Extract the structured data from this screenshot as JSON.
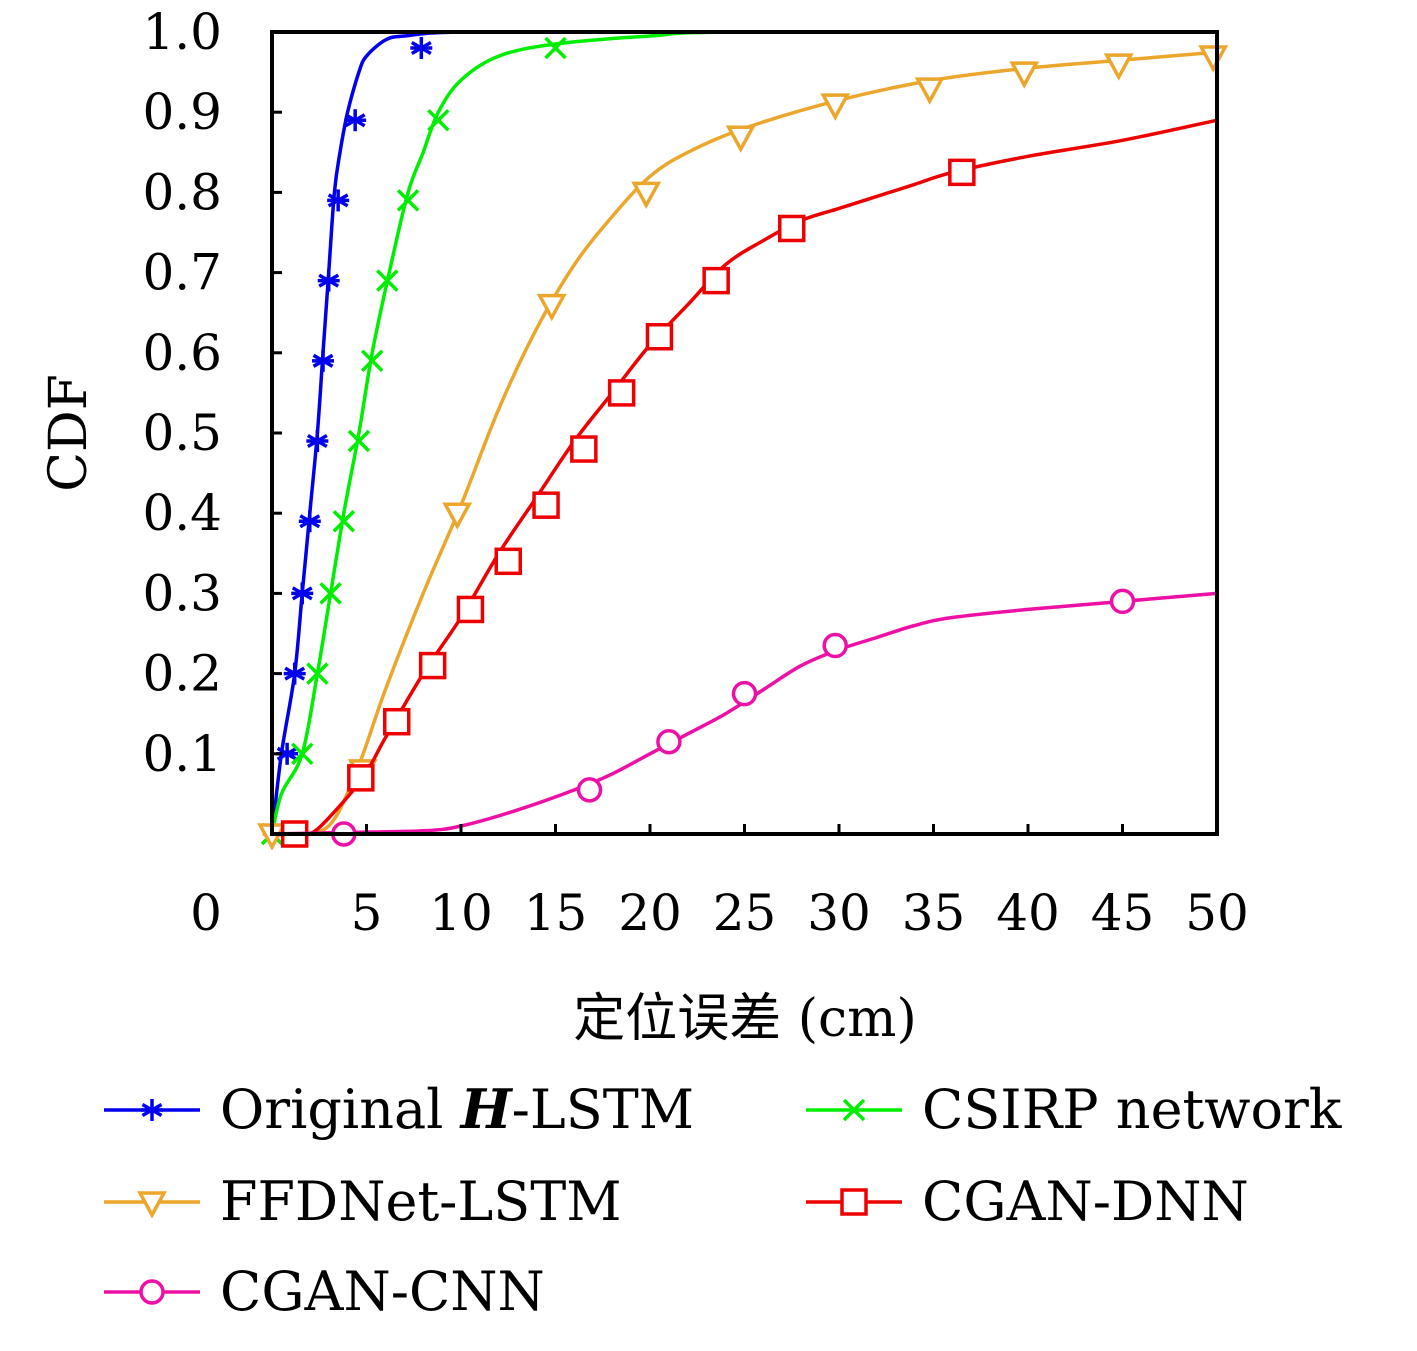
{
  "chart_data": {
    "type": "line",
    "xlabel": "定位误差 (cm)",
    "ylabel": "CDF",
    "xlim": [
      0,
      50
    ],
    "ylim": [
      0,
      1.0
    ],
    "x_ticks": [
      "0",
      "5",
      "10",
      "15",
      "20",
      "25",
      "30",
      "35",
      "40",
      "45",
      "50"
    ],
    "y_ticks": [
      "0.1",
      "0.2",
      "0.3",
      "0.4",
      "0.5",
      "0.6",
      "0.7",
      "0.8",
      "0.9",
      "1.0"
    ],
    "grid": false,
    "legend_position": "bottom",
    "series": [
      {
        "name": "Original H-LSTM",
        "name_parts": [
          "Original ",
          "H",
          "-LSTM"
        ],
        "color": "#0000ee",
        "marker": "asterisk",
        "points": [
          [
            0,
            0
          ],
          [
            0.5,
            0.1
          ],
          [
            1.2,
            0.2
          ],
          [
            1.6,
            0.3
          ],
          [
            2.0,
            0.4
          ],
          [
            2.4,
            0.5
          ],
          [
            2.7,
            0.6
          ],
          [
            3.0,
            0.7
          ],
          [
            3.3,
            0.8
          ],
          [
            3.6,
            0.85
          ],
          [
            4.0,
            0.9
          ],
          [
            4.6,
            0.95
          ],
          [
            5.0,
            0.97
          ],
          [
            6.0,
            0.99
          ],
          [
            7.0,
            0.995
          ],
          [
            10,
            1.0
          ],
          [
            20,
            1.0
          ],
          [
            50,
            1.0
          ]
        ],
        "markers": [
          [
            0.8,
            0.1
          ],
          [
            1.2,
            0.2
          ],
          [
            1.6,
            0.3
          ],
          [
            2.0,
            0.39
          ],
          [
            2.4,
            0.49
          ],
          [
            2.7,
            0.59
          ],
          [
            3.0,
            0.69
          ],
          [
            3.5,
            0.79
          ],
          [
            4.4,
            0.89
          ],
          [
            7.9,
            0.98
          ]
        ]
      },
      {
        "name": "CSIRP network",
        "color": "#00ee00",
        "marker": "x",
        "points": [
          [
            0,
            0
          ],
          [
            0.5,
            0.05
          ],
          [
            1.6,
            0.1
          ],
          [
            2.4,
            0.2
          ],
          [
            3.1,
            0.3
          ],
          [
            3.8,
            0.4
          ],
          [
            4.6,
            0.5
          ],
          [
            5.3,
            0.6
          ],
          [
            6.2,
            0.7
          ],
          [
            7.2,
            0.8
          ],
          [
            8.0,
            0.85
          ],
          [
            8.8,
            0.9
          ],
          [
            10,
            0.94
          ],
          [
            12,
            0.97
          ],
          [
            15,
            0.985
          ],
          [
            20,
            0.995
          ],
          [
            25,
            1.0
          ],
          [
            50,
            1.0
          ]
        ],
        "markers": [
          [
            0,
            0
          ],
          [
            1.6,
            0.1
          ],
          [
            2.4,
            0.2
          ],
          [
            3.1,
            0.3
          ],
          [
            3.8,
            0.39
          ],
          [
            4.6,
            0.49
          ],
          [
            5.3,
            0.59
          ],
          [
            6.1,
            0.69
          ],
          [
            7.2,
            0.79
          ],
          [
            8.8,
            0.89
          ],
          [
            15,
            0.98
          ]
        ]
      },
      {
        "name": "FFDNet-LSTM",
        "color": "#eba62b",
        "marker": "triangle-down",
        "points": [
          [
            -0.5,
            0
          ],
          [
            1,
            0
          ],
          [
            3,
            0.01
          ],
          [
            4.5,
            0.08
          ],
          [
            6,
            0.18
          ],
          [
            8,
            0.3
          ],
          [
            10,
            0.41
          ],
          [
            12,
            0.53
          ],
          [
            14,
            0.63
          ],
          [
            16,
            0.71
          ],
          [
            18,
            0.77
          ],
          [
            20,
            0.82
          ],
          [
            22,
            0.85
          ],
          [
            25,
            0.88
          ],
          [
            30,
            0.915
          ],
          [
            35,
            0.94
          ],
          [
            40,
            0.955
          ],
          [
            45,
            0.965
          ],
          [
            50,
            0.975
          ]
        ],
        "markers": [
          [
            0,
            0
          ],
          [
            4.8,
            0.08
          ],
          [
            9.8,
            0.4
          ],
          [
            14.8,
            0.66
          ],
          [
            19.8,
            0.8
          ],
          [
            24.8,
            0.87
          ],
          [
            29.8,
            0.91
          ],
          [
            34.8,
            0.93
          ],
          [
            39.8,
            0.95
          ],
          [
            44.8,
            0.96
          ],
          [
            49.8,
            0.97
          ]
        ]
      },
      {
        "name": "CGAN-DNN",
        "color": "#ee0000",
        "marker": "square",
        "points": [
          [
            1,
            0
          ],
          [
            2,
            0
          ],
          [
            3,
            0.02
          ],
          [
            4.8,
            0.07
          ],
          [
            6,
            0.12
          ],
          [
            8,
            0.2
          ],
          [
            10,
            0.27
          ],
          [
            12,
            0.35
          ],
          [
            14,
            0.42
          ],
          [
            16,
            0.49
          ],
          [
            18,
            0.55
          ],
          [
            20,
            0.61
          ],
          [
            22,
            0.66
          ],
          [
            24,
            0.71
          ],
          [
            26,
            0.74
          ],
          [
            28,
            0.765
          ],
          [
            30,
            0.78
          ],
          [
            32,
            0.795
          ],
          [
            34,
            0.81
          ],
          [
            36,
            0.825
          ],
          [
            40,
            0.845
          ],
          [
            45,
            0.865
          ],
          [
            50,
            0.89
          ]
        ],
        "markers": [
          [
            1.2,
            0
          ],
          [
            4.7,
            0.07
          ],
          [
            6.6,
            0.14
          ],
          [
            8.5,
            0.21
          ],
          [
            10.5,
            0.28
          ],
          [
            12.5,
            0.34
          ],
          [
            14.5,
            0.41
          ],
          [
            16.5,
            0.48
          ],
          [
            18.5,
            0.55
          ],
          [
            20.5,
            0.62
          ],
          [
            23.5,
            0.69
          ],
          [
            27.5,
            0.755
          ],
          [
            36.5,
            0.825
          ]
        ]
      },
      {
        "name": "CGAN-CNN",
        "color": "#ee10a6",
        "marker": "circle",
        "points": [
          [
            0,
            0
          ],
          [
            4,
            0.002
          ],
          [
            8,
            0.004
          ],
          [
            10,
            0.01
          ],
          [
            13,
            0.03
          ],
          [
            16,
            0.055
          ],
          [
            18,
            0.075
          ],
          [
            20,
            0.1
          ],
          [
            22,
            0.125
          ],
          [
            24,
            0.15
          ],
          [
            26,
            0.18
          ],
          [
            28,
            0.21
          ],
          [
            30,
            0.23
          ],
          [
            32,
            0.245
          ],
          [
            34,
            0.26
          ],
          [
            36,
            0.27
          ],
          [
            40,
            0.28
          ],
          [
            45,
            0.29
          ],
          [
            50,
            0.3
          ]
        ],
        "markers": [
          [
            3.8,
            0
          ],
          [
            16.8,
            0.055
          ],
          [
            21,
            0.115
          ],
          [
            25,
            0.175
          ],
          [
            29.8,
            0.235
          ],
          [
            45,
            0.29
          ]
        ]
      }
    ]
  }
}
